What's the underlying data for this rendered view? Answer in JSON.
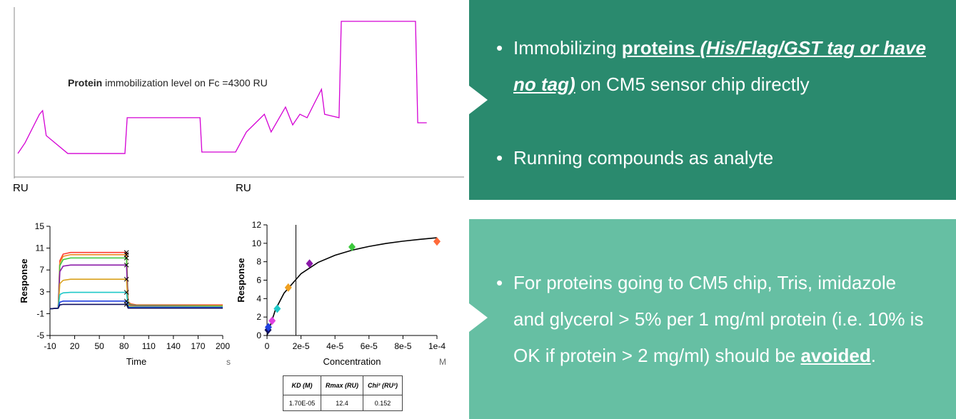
{
  "chart_data": [
    {
      "type": "line",
      "annotation": [
        {
          "text": "Protein",
          "bold": true
        },
        {
          "text": " immobilization level on Fc =4300 RU"
        }
      ],
      "y_labels": [
        "RU",
        "RU"
      ],
      "xlim": [
        0,
        100
      ],
      "ylim": [
        0,
        100
      ],
      "series": [
        {
          "color": "#d400d4",
          "x": [
            0.8,
            2.4,
            5.6,
            6.3,
            7.1,
            11.9,
            24.6,
            25.1,
            41.3,
            41.7,
            49.2,
            51.6,
            53.2,
            55.6,
            57.1,
            60.3,
            61.9,
            63.5,
            65.1,
            66.7,
            68.3,
            69.0,
            72.2,
            72.7,
            89.2,
            89.7,
            91.7
          ],
          "values": [
            15.2,
            21.7,
            39.1,
            41.3,
            26.1,
            15.2,
            15.2,
            37.0,
            37.0,
            16.1,
            16.1,
            28.3,
            32.6,
            39.1,
            28.3,
            43.5,
            32.6,
            39.1,
            37.0,
            45.7,
            54.3,
            39.1,
            37.0,
            95.7,
            95.7,
            33.9,
            33.9
          ]
        }
      ]
    },
    {
      "type": "line",
      "x_label": "Time",
      "y_label": "Response",
      "x_unit": "s",
      "xlim": [
        -10,
        200
      ],
      "ylim": [
        -5,
        15
      ],
      "xticks": [
        -10,
        20,
        50,
        80,
        110,
        140,
        170,
        200
      ],
      "yticks": [
        -5,
        -1,
        3,
        7,
        11,
        15
      ],
      "x": [
        -10,
        0,
        2,
        6,
        15,
        83,
        85,
        88,
        95,
        200
      ],
      "series": [
        {
          "color": "#ff3b2f",
          "values": [
            -0.1,
            0,
            8.7,
            9.9,
            10.2,
            10.2,
            1.2,
            0.8,
            0.6,
            0.6
          ]
        },
        {
          "color": "#f08a24",
          "values": [
            -0.1,
            0,
            8.3,
            9.5,
            9.8,
            9.8,
            1.1,
            0.7,
            0.5,
            0.5
          ]
        },
        {
          "color": "#3cc83c",
          "values": [
            -0.1,
            0,
            7.8,
            8.9,
            9.2,
            9.2,
            1.0,
            0.6,
            0.5,
            0.4
          ]
        },
        {
          "color": "#8a1aa8",
          "values": [
            -0.1,
            0,
            6.7,
            7.7,
            7.9,
            7.9,
            0.8,
            0.5,
            0.4,
            0.3
          ]
        },
        {
          "color": "#d9a21e",
          "values": [
            -0.1,
            0,
            4.5,
            5.1,
            5.3,
            5.3,
            0.6,
            0.4,
            0.3,
            0.3
          ]
        },
        {
          "color": "#1ec8c8",
          "values": [
            -0.1,
            0,
            2.5,
            2.8,
            2.9,
            2.9,
            0.3,
            0.2,
            0.2,
            0.2
          ]
        },
        {
          "color": "#2040e0",
          "values": [
            -0.1,
            0,
            1.1,
            1.3,
            1.3,
            1.3,
            0.1,
            0.1,
            0.1,
            0.1
          ]
        },
        {
          "color": "#101060",
          "values": [
            -0.1,
            0,
            0.6,
            0.7,
            0.7,
            0.7,
            0,
            0,
            0,
            0
          ]
        }
      ],
      "end_marker_index": 5
    },
    {
      "type": "scatter",
      "x_label": "Concentration",
      "y_label": "Response",
      "x_unit": "M",
      "xlim": [
        0,
        0.0001
      ],
      "ylim": [
        0,
        12
      ],
      "xticks": [
        0,
        {
          "value": 2e-05,
          "label": "2e-5"
        },
        {
          "value": 4e-05,
          "label": "4e-5"
        },
        {
          "value": 6e-05,
          "label": "6e-5"
        },
        {
          "value": 8e-05,
          "label": "8e-5"
        },
        {
          "value": 0.0001,
          "label": "1e-4"
        }
      ],
      "yticks": [
        0,
        2,
        4,
        6,
        8,
        10,
        12
      ],
      "points": {
        "x": [
          6e-07,
          8e-07,
          3e-06,
          6e-06,
          1.25e-05,
          2.5e-05,
          5e-05,
          0.0001
        ],
        "values": [
          0.6,
          0.9,
          1.6,
          2.9,
          5.2,
          7.8,
          9.6,
          10.2
        ],
        "colors": [
          "#101060",
          "#2040e0",
          "#e040e0",
          "#1ec8c8",
          "#f0a020",
          "#8a1aa8",
          "#3cc83c",
          "#ff6a3a"
        ]
      },
      "fit": {
        "color": "#000000",
        "x": [
          0,
          5e-06,
          1e-05,
          2e-05,
          3e-05,
          4e-05,
          5e-05,
          6e-05,
          7e-05,
          8e-05,
          9e-05,
          0.0001
        ],
        "values": [
          0,
          2.82,
          4.59,
          6.7,
          7.92,
          8.7,
          9.25,
          9.66,
          9.98,
          10.23,
          10.43,
          10.6
        ]
      },
      "vline": 1.7e-05,
      "table": {
        "header": [
          "KD (M)",
          "Rmax (RU)",
          "Chi² (RU²)"
        ],
        "rows": [
          [
            "1.70E-05",
            "12.4",
            "0.152"
          ]
        ]
      }
    }
  ],
  "panels": [
    {
      "color": "#2a8a6e",
      "bullets": [
        {
          "runs": [
            {
              "text": "Immobilizing "
            },
            {
              "text": "proteins ",
              "style": "bu"
            },
            {
              "text": "(His/Flag/GST tag or have no tag)",
              "style": "biu"
            },
            {
              "text": " on CM5 sensor chip directly"
            }
          ]
        },
        {
          "runs": [
            {
              "text": "Running compounds as analyte"
            }
          ]
        }
      ]
    },
    {
      "color": "#66bfa3",
      "bullets": [
        {
          "runs": [
            {
              "text": "For proteins going to CM5 chip, Tris, imidazole and glycerol > 5% per 1 mg/ml protein (i.e. 10% is OK if protein > 2 mg/ml) should be "
            },
            {
              "text": "avoided",
              "style": "bu"
            },
            {
              "text": "."
            }
          ]
        }
      ]
    }
  ]
}
